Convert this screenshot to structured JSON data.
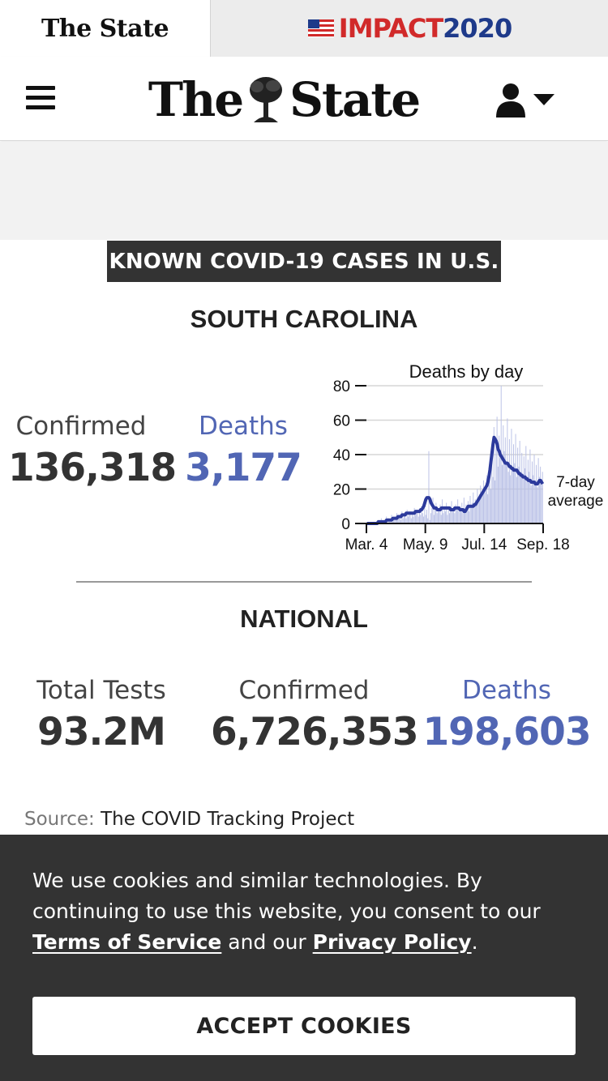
{
  "brand_tabs": {
    "state_label": "The State",
    "impact_word": "IMPACT",
    "impact_year": "2020"
  },
  "masthead": {
    "logo_left": "The",
    "logo_right": "State"
  },
  "widget": {
    "banner": "KNOWN COVID-19 CASES IN U.S.",
    "state": {
      "title": "SOUTH CAROLINA",
      "confirmed_label": "Confirmed",
      "confirmed_value": "136,318",
      "deaths_label": "Deaths",
      "deaths_value": "3,177"
    },
    "national": {
      "title": "NATIONAL",
      "tests_label": "Total Tests",
      "tests_value": "93.2M",
      "confirmed_label": "Confirmed",
      "confirmed_value": "6,726,353",
      "deaths_label": "Deaths",
      "deaths_value": "198,603"
    },
    "source_label": "Source:",
    "source_value": "The COVID Tracking Project"
  },
  "cookie": {
    "text_1": "We use cookies and similar technologies. By continuing to use this website, you consent to our ",
    "terms_link": "Terms of Service",
    "text_2": " and our ",
    "privacy_link": "Privacy Policy",
    "text_3": ".",
    "accept_label": "ACCEPT COOKIES"
  },
  "colors": {
    "deaths_blue": "#5166b4",
    "bar_color": "#b9c0e6",
    "avg_line": "#2c3a9c",
    "banner_bg": "#333333"
  },
  "chart_data": {
    "type": "bar",
    "title": "Deaths by day",
    "x_ticks": [
      "Mar. 4",
      "May. 9",
      "Jul. 14",
      "Sep. 18"
    ],
    "y_ticks": [
      0,
      20,
      40,
      60,
      80
    ],
    "ylim": [
      0,
      80
    ],
    "grid": true,
    "series": [
      {
        "kind": "bar",
        "values": [
          0,
          0,
          0,
          0,
          0,
          0,
          0,
          1,
          0,
          1,
          0,
          2,
          1,
          0,
          3,
          1,
          0,
          2,
          1,
          4,
          0,
          3,
          1,
          2,
          5,
          1,
          3,
          2,
          4,
          6,
          2,
          3,
          5,
          2,
          7,
          3,
          4,
          6,
          3,
          8,
          4,
          5,
          7,
          3,
          6,
          4,
          9,
          5,
          6,
          8,
          4,
          7,
          5,
          10,
          6,
          4,
          9,
          5,
          8,
          3,
          42,
          2,
          6,
          9,
          15,
          5,
          8,
          12,
          6,
          9,
          7,
          11,
          5,
          14,
          6,
          9,
          7,
          12,
          5,
          10,
          6,
          8,
          13,
          7,
          9,
          6,
          11,
          8,
          14,
          7,
          10,
          9,
          12,
          6,
          15,
          8,
          11,
          9,
          13,
          7,
          16,
          10,
          12,
          18,
          9,
          14,
          11,
          20,
          13,
          17,
          22,
          15,
          19,
          25,
          18,
          21,
          28,
          17,
          24,
          32,
          20,
          38,
          27,
          56,
          25,
          46,
          62,
          33,
          51,
          38,
          80,
          34,
          57,
          42,
          50,
          36,
          61,
          30,
          49,
          28,
          55,
          31,
          46,
          35,
          52,
          27,
          44,
          33,
          48,
          29,
          41,
          26,
          39,
          32,
          45,
          24,
          37,
          30,
          43,
          22,
          36,
          28,
          40,
          25,
          34,
          21,
          38,
          27,
          33,
          23,
          30
        ]
      },
      {
        "kind": "line",
        "name": "7-day average",
        "values": [
          0,
          0,
          0,
          0,
          0,
          0,
          0,
          0,
          0,
          0,
          0,
          1,
          1,
          1,
          1,
          1,
          1,
          1,
          1,
          2,
          2,
          2,
          2,
          2,
          2,
          3,
          3,
          3,
          3,
          3,
          4,
          4,
          4,
          4,
          5,
          5,
          5,
          5,
          6,
          6,
          6,
          6,
          6,
          6,
          6,
          6,
          6,
          7,
          7,
          7,
          7,
          7,
          8,
          8,
          9,
          10,
          12,
          14,
          15,
          15,
          15,
          14,
          12,
          11,
          10,
          9,
          9,
          9,
          8,
          8,
          8,
          8,
          9,
          9,
          9,
          9,
          9,
          9,
          9,
          9,
          9,
          8,
          8,
          8,
          8,
          9,
          9,
          9,
          9,
          9,
          8,
          8,
          8,
          8,
          7,
          7,
          8,
          9,
          10,
          10,
          10,
          10,
          10,
          10,
          11,
          11,
          12,
          13,
          14,
          15,
          16,
          17,
          18,
          19,
          20,
          21,
          22,
          24,
          27,
          31,
          36,
          41,
          46,
          50,
          49,
          48,
          46,
          43,
          42,
          40,
          39,
          38,
          37,
          36,
          35,
          35,
          35,
          34,
          33,
          33,
          32,
          32,
          31,
          31,
          31,
          31,
          30,
          29,
          29,
          28,
          28,
          27,
          27,
          27,
          26,
          26,
          25,
          25,
          25,
          24,
          24,
          24,
          24,
          23,
          23,
          23,
          24,
          25,
          25,
          24,
          23
        ]
      }
    ]
  }
}
